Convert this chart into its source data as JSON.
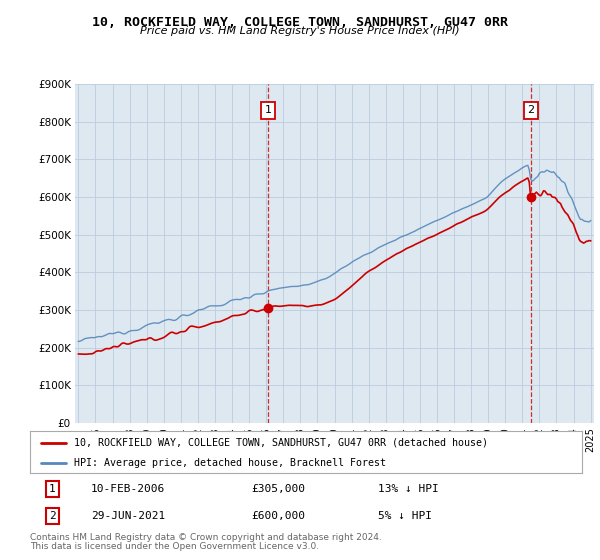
{
  "title": "10, ROCKFIELD WAY, COLLEGE TOWN, SANDHURST, GU47 0RR",
  "subtitle": "Price paid vs. HM Land Registry's House Price Index (HPI)",
  "ylabel_ticks": [
    "£0",
    "£100K",
    "£200K",
    "£300K",
    "£400K",
    "£500K",
    "£600K",
    "£700K",
    "£800K",
    "£900K"
  ],
  "ytick_values": [
    0,
    100000,
    200000,
    300000,
    400000,
    500000,
    600000,
    700000,
    800000,
    900000
  ],
  "ylim": [
    0,
    900000
  ],
  "xlim_start": 1994.8,
  "xlim_end": 2025.2,
  "line_color_property": "#cc0000",
  "line_color_hpi": "#5588bb",
  "plot_bg_color": "#dde8f0",
  "transaction1_x": 2006.1,
  "transaction1_y": 305000,
  "transaction2_x": 2021.5,
  "transaction2_y": 600000,
  "legend_property": "10, ROCKFIELD WAY, COLLEGE TOWN, SANDHURST, GU47 0RR (detached house)",
  "legend_hpi": "HPI: Average price, detached house, Bracknell Forest",
  "annotation1_label": "1",
  "annotation1_date": "10-FEB-2006",
  "annotation1_price": "£305,000",
  "annotation1_hpi": "13% ↓ HPI",
  "annotation2_label": "2",
  "annotation2_date": "29-JUN-2021",
  "annotation2_price": "£600,000",
  "annotation2_hpi": "5% ↓ HPI",
  "footer_line1": "Contains HM Land Registry data © Crown copyright and database right 2024.",
  "footer_line2": "This data is licensed under the Open Government Licence v3.0.",
  "background_color": "#ffffff",
  "grid_color": "#bbccdd"
}
